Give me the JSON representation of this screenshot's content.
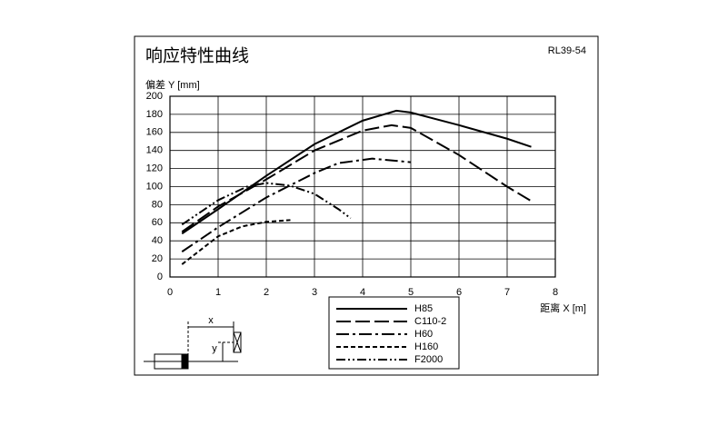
{
  "chart_data": {
    "type": "line",
    "title": "响应特性曲线",
    "annotation": "RL39-54",
    "ylabel": "偏差 Y [mm]",
    "xlabel": "距离 X [m]",
    "xlim": [
      0,
      8
    ],
    "xticks": [
      0,
      1,
      2,
      3,
      4,
      5,
      6,
      7,
      8
    ],
    "ylim": [
      0,
      200
    ],
    "yticks": [
      0,
      20,
      40,
      60,
      80,
      100,
      120,
      140,
      160,
      180,
      200
    ],
    "grid": true,
    "series": [
      {
        "name": "H85",
        "color": "#000000",
        "line_style": "solid",
        "x": [
          0.25,
          1,
          2,
          3,
          4,
          4.7,
          5,
          6,
          7,
          7.5
        ],
        "values": [
          48,
          75,
          112,
          147,
          173,
          184,
          182,
          168,
          153,
          144
        ]
      },
      {
        "name": "C110-2",
        "color": "#000000",
        "line_style": "longdash",
        "x": [
          0.25,
          1,
          2,
          3,
          4,
          4.6,
          5,
          6,
          7,
          7.5
        ],
        "values": [
          50,
          78,
          108,
          140,
          162,
          168,
          165,
          135,
          100,
          84
        ]
      },
      {
        "name": "H60",
        "color": "#000000",
        "line_style": "dashdot",
        "x": [
          0.25,
          1,
          2,
          3,
          3.5,
          4.2,
          5
        ],
        "values": [
          28,
          55,
          88,
          115,
          126,
          131,
          127
        ]
      },
      {
        "name": "H160",
        "color": "#000000",
        "line_style": "dashed",
        "x": [
          0.25,
          1,
          1.5,
          2,
          2.5
        ],
        "values": [
          14,
          45,
          56,
          61,
          63
        ]
      },
      {
        "name": "F2000",
        "color": "#000000",
        "line_style": "dashdotdot",
        "x": [
          0.25,
          1,
          1.6,
          2,
          2.5,
          3,
          3.5,
          3.75
        ],
        "values": [
          58,
          85,
          100,
          104,
          101,
          92,
          75,
          65
        ]
      }
    ],
    "diagram_labels": {
      "x": "x",
      "y": "y"
    }
  }
}
